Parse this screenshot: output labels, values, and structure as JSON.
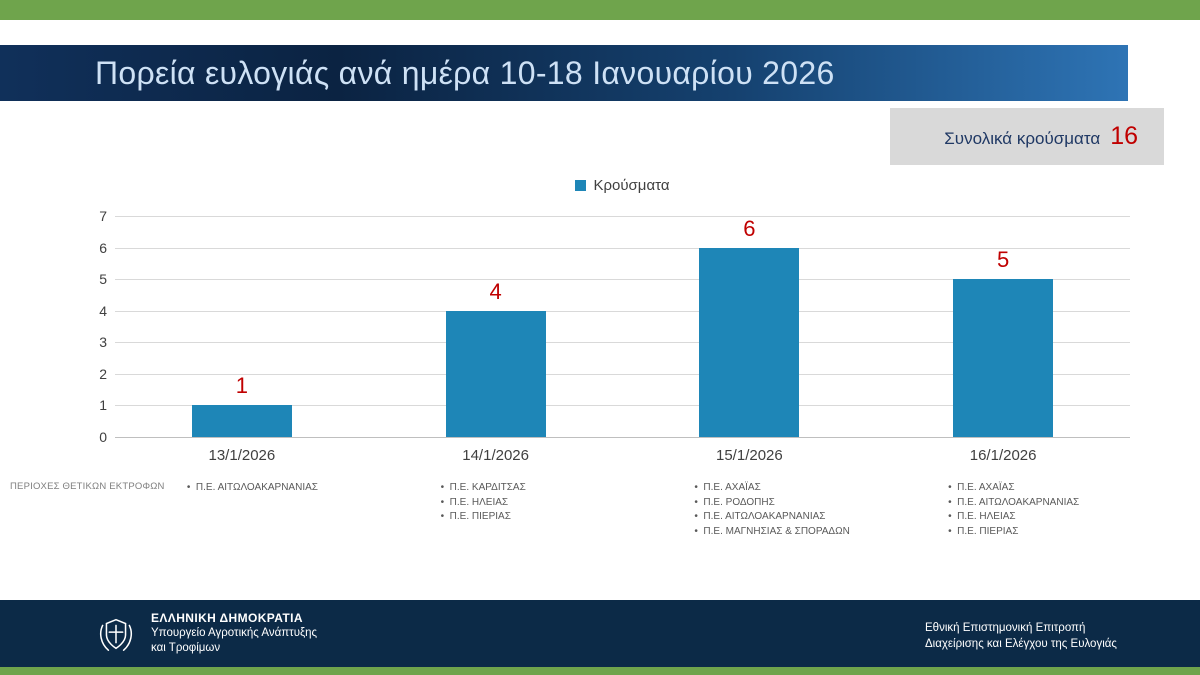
{
  "colors": {
    "accent_green": "#6FA44C",
    "navy": "#0C2A47",
    "band_dark": "#0B2342",
    "band_blue": "#2E74B5",
    "title_text": "#CEE1F5",
    "bar": "#1E86B7",
    "value_red": "#C00000",
    "grid": "#D9D9D9",
    "axis_zero_line": "#BFBFBF",
    "axis_text": "#404040",
    "muted_text": "#595959",
    "box_gray": "#D9D9D9",
    "total_label_navy": "#1F3864"
  },
  "header": {
    "title": "Πορεία ευλογιάς ανά ημέρα 10-18 Ιανουαρίου 2026"
  },
  "total": {
    "label": "Συνολικά κρούσματα",
    "value": "16"
  },
  "chart_data": {
    "type": "bar",
    "title": "",
    "xlabel": "",
    "ylabel": "",
    "legend": [
      "Κρούσματα"
    ],
    "legend_position": "top",
    "categories": [
      "13/1/2026",
      "14/1/2026",
      "15/1/2026",
      "16/1/2026"
    ],
    "values": [
      1,
      4,
      6,
      5
    ],
    "value_labels": [
      "1",
      "4",
      "6",
      "5"
    ],
    "ylim": [
      0,
      7
    ],
    "yticks": [
      0,
      1,
      2,
      3,
      4,
      5,
      6,
      7
    ],
    "grid": true
  },
  "regions": {
    "row_label": "ΠΕΡΙΟΧΕΣ ΘΕΤΙΚΩΝ ΕΚΤΡΟΦΩΝ",
    "by_day": [
      [
        "Π.Ε. ΑΙΤΩΛΟΑΚΑΡΝΑΝΙΑΣ"
      ],
      [
        "Π.Ε. ΚΑΡΔΙΤΣΑΣ",
        "Π.Ε. ΗΛΕΙΑΣ",
        "Π.Ε. ΠΙΕΡΙΑΣ"
      ],
      [
        "Π.Ε. ΑΧΑΪΑΣ",
        "Π.Ε. ΡΟΔΟΠΗΣ",
        "Π.Ε. ΑΙΤΩΛΟΑΚΑΡΝΑΝΙΑΣ",
        "Π.Ε. ΜΑΓΝΗΣΙΑΣ & ΣΠΟΡΑΔΩΝ"
      ],
      [
        "Π.Ε. ΑΧΑΪΑΣ",
        "Π.Ε. ΑΙΤΩΛΟΑΚΑΡΝΑΝΙΑΣ",
        "Π.Ε. ΗΛΕΙΑΣ",
        "Π.Ε. ΠΙΕΡΙΑΣ"
      ]
    ]
  },
  "footer": {
    "org_name": "ΕΛΛΗΝΙΚΗ ΔΗΜΟΚΡΑΤΙΑ",
    "ministry_line1": "Υπουργείο Αγροτικής Ανάπτυξης",
    "ministry_line2": "και Τροφίμων",
    "committee_line1": "Εθνική Επιστημονική Επιτροπή",
    "committee_line2": "Διαχείρισης και Ελέγχου της Ευλογιάς"
  }
}
